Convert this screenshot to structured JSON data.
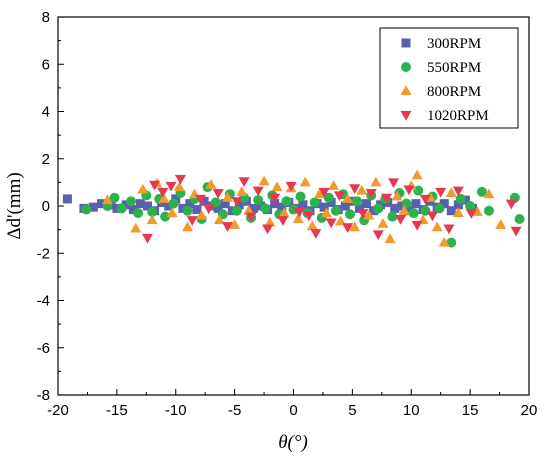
{
  "chart_data": {
    "type": "scatter",
    "xlabel": "θ(°)",
    "ylabel": "Δd'(mm)",
    "xlim": [
      -20,
      20
    ],
    "ylim": [
      -8,
      8
    ],
    "xticks": [
      -20,
      -15,
      -10,
      -5,
      0,
      5,
      10,
      15,
      20
    ],
    "yticks": [
      -8,
      -6,
      -4,
      -2,
      0,
      2,
      4,
      6,
      8
    ],
    "grid": false,
    "legend_position": "top-right",
    "series": [
      {
        "name": "300RPM",
        "marker": "square",
        "color": "#5b5fb0",
        "points": [
          [
            -19.2,
            0.3
          ],
          [
            -17.8,
            -0.1
          ],
          [
            -17.0,
            -0.05
          ],
          [
            -16.3,
            0.1
          ],
          [
            -15.5,
            0.05
          ],
          [
            -15.0,
            -0.1
          ],
          [
            -14.2,
            0.05
          ],
          [
            -13.6,
            -0.15
          ],
          [
            -13.0,
            0.1
          ],
          [
            -12.4,
            0.0
          ],
          [
            -11.8,
            -0.2
          ],
          [
            -11.2,
            0.15
          ],
          [
            -10.6,
            0.0
          ],
          [
            -10.0,
            0.3
          ],
          [
            -9.4,
            -0.1
          ],
          [
            -8.8,
            0.1
          ],
          [
            -8.2,
            -0.15
          ],
          [
            -7.6,
            0.2
          ],
          [
            -7.0,
            0.0
          ],
          [
            -6.4,
            -0.1
          ],
          [
            -5.8,
            0.1
          ],
          [
            -5.2,
            -0.2
          ],
          [
            -4.6,
            0.05
          ],
          [
            -4.0,
            0.2
          ],
          [
            -3.4,
            -0.1
          ],
          [
            -2.8,
            0.0
          ],
          [
            -2.2,
            -0.15
          ],
          [
            -1.6,
            0.1
          ],
          [
            -1.0,
            -0.05
          ],
          [
            -0.4,
            0.15
          ],
          [
            0.2,
            -0.1
          ],
          [
            0.8,
            0.05
          ],
          [
            1.4,
            -0.2
          ],
          [
            2.0,
            0.1
          ],
          [
            2.6,
            -0.05
          ],
          [
            3.2,
            0.15
          ],
          [
            3.8,
            -0.15
          ],
          [
            4.4,
            0.0
          ],
          [
            5.0,
            0.2
          ],
          [
            5.6,
            -0.1
          ],
          [
            6.2,
            0.1
          ],
          [
            6.8,
            -0.2
          ],
          [
            7.4,
            0.05
          ],
          [
            8.0,
            0.15
          ],
          [
            8.6,
            -0.1
          ],
          [
            9.2,
            0.0
          ],
          [
            9.8,
            -0.2
          ],
          [
            10.4,
            0.1
          ],
          [
            11.0,
            -0.15
          ],
          [
            11.6,
            0.2
          ],
          [
            12.2,
            -0.05
          ],
          [
            12.8,
            0.1
          ],
          [
            13.4,
            -0.2
          ],
          [
            14.0,
            0.05
          ],
          [
            14.6,
            0.25
          ],
          [
            15.2,
            -0.1
          ]
        ]
      },
      {
        "name": "550RPM",
        "marker": "circle",
        "color": "#2bb24c",
        "points": [
          [
            -17.6,
            -0.15
          ],
          [
            -15.8,
            0.0
          ],
          [
            -15.2,
            0.35
          ],
          [
            -14.6,
            -0.1
          ],
          [
            -13.8,
            0.2
          ],
          [
            -13.2,
            -0.3
          ],
          [
            -12.5,
            0.45
          ],
          [
            -12.0,
            -0.25
          ],
          [
            -11.4,
            0.3
          ],
          [
            -10.9,
            -0.45
          ],
          [
            -10.2,
            0.1
          ],
          [
            -9.6,
            0.55
          ],
          [
            -9.0,
            -0.2
          ],
          [
            -8.4,
            0.3
          ],
          [
            -7.8,
            -0.55
          ],
          [
            -7.3,
            0.8
          ],
          [
            -6.6,
            0.15
          ],
          [
            -6.0,
            -0.35
          ],
          [
            -5.4,
            0.5
          ],
          [
            -4.8,
            -0.2
          ],
          [
            -4.2,
            0.35
          ],
          [
            -3.6,
            -0.5
          ],
          [
            -3.0,
            0.25
          ],
          [
            -2.4,
            -0.1
          ],
          [
            -1.8,
            0.45
          ],
          [
            -1.2,
            -0.35
          ],
          [
            -0.6,
            0.2
          ],
          [
            0.0,
            -0.15
          ],
          [
            0.6,
            0.4
          ],
          [
            1.2,
            -0.3
          ],
          [
            1.8,
            0.15
          ],
          [
            2.4,
            -0.5
          ],
          [
            3.0,
            0.35
          ],
          [
            3.6,
            -0.2
          ],
          [
            4.2,
            0.5
          ],
          [
            4.8,
            -0.35
          ],
          [
            5.4,
            0.2
          ],
          [
            6.0,
            -0.6
          ],
          [
            6.6,
            0.45
          ],
          [
            7.2,
            -0.1
          ],
          [
            7.8,
            0.3
          ],
          [
            8.4,
            -0.45
          ],
          [
            9.0,
            0.55
          ],
          [
            9.6,
            0.1
          ],
          [
            10.2,
            -0.3
          ],
          [
            10.6,
            0.65
          ],
          [
            11.2,
            -0.2
          ],
          [
            11.8,
            0.4
          ],
          [
            12.4,
            -0.1
          ],
          [
            13.4,
            -1.55
          ],
          [
            14.2,
            0.3
          ],
          [
            15.0,
            0.0
          ],
          [
            16.0,
            0.6
          ],
          [
            16.6,
            -0.2
          ],
          [
            18.8,
            0.35
          ],
          [
            19.2,
            -0.55
          ]
        ]
      },
      {
        "name": "800RPM",
        "marker": "triangle-up",
        "color": "#f39a2c",
        "points": [
          [
            -15.8,
            0.25
          ],
          [
            -13.4,
            -0.95
          ],
          [
            -12.8,
            0.7
          ],
          [
            -12.0,
            -0.6
          ],
          [
            -11.6,
            0.95
          ],
          [
            -11.0,
            0.3
          ],
          [
            -10.3,
            -0.3
          ],
          [
            -9.7,
            0.8
          ],
          [
            -9.0,
            -0.9
          ],
          [
            -8.4,
            0.5
          ],
          [
            -7.8,
            -0.4
          ],
          [
            -7.0,
            0.9
          ],
          [
            -6.3,
            -0.6
          ],
          [
            -5.6,
            0.35
          ],
          [
            -5.0,
            -0.8
          ],
          [
            -4.4,
            0.6
          ],
          [
            -3.8,
            -0.2
          ],
          [
            -2.5,
            1.05
          ],
          [
            -2.0,
            -0.7
          ],
          [
            -1.4,
            0.8
          ],
          [
            -0.8,
            -0.3
          ],
          [
            -0.2,
            0.75
          ],
          [
            0.4,
            -0.55
          ],
          [
            1.0,
            1.0
          ],
          [
            1.6,
            -0.85
          ],
          [
            2.2,
            0.5
          ],
          [
            2.8,
            -0.3
          ],
          [
            3.4,
            0.85
          ],
          [
            4.0,
            -0.65
          ],
          [
            4.6,
            0.3
          ],
          [
            5.2,
            -0.9
          ],
          [
            5.8,
            0.65
          ],
          [
            6.4,
            -0.4
          ],
          [
            7.0,
            1.0
          ],
          [
            7.6,
            -0.75
          ],
          [
            8.2,
            -1.4
          ],
          [
            8.8,
            0.4
          ],
          [
            9.4,
            -0.2
          ],
          [
            10.0,
            0.85
          ],
          [
            10.5,
            1.3
          ],
          [
            11.0,
            -0.6
          ],
          [
            11.6,
            0.35
          ],
          [
            12.2,
            -0.9
          ],
          [
            12.8,
            -1.55
          ],
          [
            13.4,
            0.55
          ],
          [
            14.0,
            -0.3
          ],
          [
            15.6,
            -0.25
          ],
          [
            16.6,
            0.5
          ],
          [
            17.6,
            -0.8
          ]
        ]
      },
      {
        "name": "1020RPM",
        "marker": "triangle-down",
        "color": "#e8384f",
        "points": [
          [
            -12.4,
            -1.35
          ],
          [
            -11.8,
            0.9
          ],
          [
            -11.1,
            0.6
          ],
          [
            -10.4,
            0.85
          ],
          [
            -9.6,
            1.15
          ],
          [
            -8.6,
            -0.6
          ],
          [
            -7.9,
            0.3
          ],
          [
            -7.2,
            -0.1
          ],
          [
            -6.4,
            0.55
          ],
          [
            -5.6,
            -0.85
          ],
          [
            -4.8,
            0.2
          ],
          [
            -4.2,
            1.05
          ],
          [
            -3.6,
            -0.45
          ],
          [
            -3.0,
            0.65
          ],
          [
            -2.2,
            -0.95
          ],
          [
            -1.6,
            0.35
          ],
          [
            -0.9,
            -0.6
          ],
          [
            -0.2,
            0.85
          ],
          [
            0.5,
            -0.25
          ],
          [
            1.3,
            -0.4
          ],
          [
            1.9,
            -1.15
          ],
          [
            2.6,
            0.6
          ],
          [
            3.2,
            -0.7
          ],
          [
            3.9,
            0.45
          ],
          [
            4.6,
            -0.9
          ],
          [
            5.2,
            0.75
          ],
          [
            5.9,
            -0.3
          ],
          [
            6.6,
            0.55
          ],
          [
            7.2,
            -1.2
          ],
          [
            7.9,
            0.35
          ],
          [
            8.5,
            1.0
          ],
          [
            9.1,
            -0.55
          ],
          [
            9.8,
            0.7
          ],
          [
            10.5,
            -0.8
          ],
          [
            11.2,
            0.3
          ],
          [
            11.8,
            -0.4
          ],
          [
            12.5,
            0.6
          ],
          [
            13.2,
            -0.95
          ],
          [
            14.0,
            0.65
          ],
          [
            15.1,
            -0.3
          ],
          [
            18.5,
            0.1
          ],
          [
            18.9,
            -1.05
          ]
        ]
      }
    ]
  }
}
